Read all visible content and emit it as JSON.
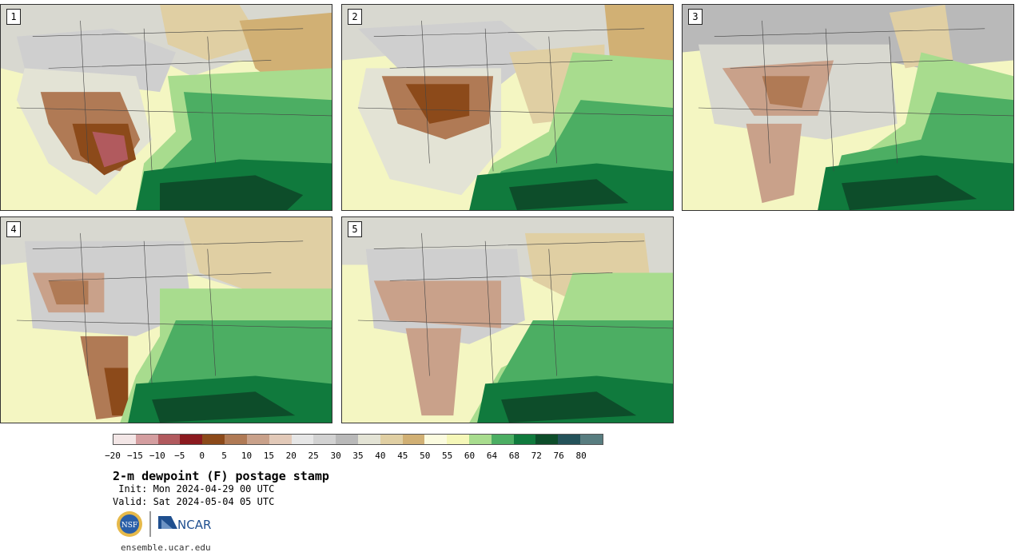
{
  "panels": [
    {
      "label": "1"
    },
    {
      "label": "2"
    },
    {
      "label": "3"
    },
    {
      "label": "4"
    },
    {
      "label": "5"
    }
  ],
  "colorbar": {
    "colors": [
      "#f3e6e6",
      "#d49ea0",
      "#b15a5e",
      "#8b1a1f",
      "#8c4a1a",
      "#b07a55",
      "#c9a18a",
      "#e2c9b8",
      "#e6e6e6",
      "#d2d2d2",
      "#b9b9b9",
      "#e3e3d5",
      "#e0cfa3",
      "#d1b074",
      "#fbfbdf",
      "#f5f7b8",
      "#a8dc8e",
      "#4cae63",
      "#107a3d",
      "#0d4d2a",
      "#24525a",
      "#587d80"
    ],
    "ticks": [
      "−20",
      "−15",
      "−10",
      "−5",
      "0",
      "5",
      "10",
      "15",
      "20",
      "25",
      "30",
      "35",
      "40",
      "45",
      "50",
      "55",
      "60",
      "64",
      "68",
      "72",
      "76",
      "80"
    ]
  },
  "title": "2-m dewpoint (F) postage stamp",
  "init": " Init: Mon 2024-04-29 00 UTC",
  "valid": "Valid: Sat 2024-05-04 05 UTC",
  "logos": {
    "nsf": "NSF",
    "ncar": "NCAR"
  },
  "site": "ensemble.ucar.edu"
}
